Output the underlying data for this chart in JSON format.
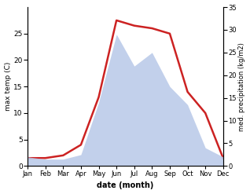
{
  "months": [
    "Jan",
    "Feb",
    "Mar",
    "Apr",
    "May",
    "Jun",
    "Jul",
    "Aug",
    "Sep",
    "Oct",
    "Nov",
    "Dec"
  ],
  "max_temp": [
    1.5,
    1.5,
    2.0,
    4.0,
    13.0,
    27.5,
    26.5,
    26.0,
    25.0,
    14.0,
    10.0,
    1.5
  ],
  "precipitation": [
    2.0,
    1.5,
    1.5,
    2.5,
    14.0,
    29.0,
    22.0,
    25.0,
    17.5,
    13.5,
    4.0,
    2.0
  ],
  "temp_color": "#cc2222",
  "precip_fill_color": "#b8c8e8",
  "precip_fill_alpha": 0.85,
  "temp_ylim": [
    0,
    30
  ],
  "precip_ylim": [
    0,
    35
  ],
  "ylabel_left": "max temp (C)",
  "ylabel_right": "med. precipitation (kg/m2)",
  "xlabel": "date (month)",
  "temp_yticks": [
    0,
    5,
    10,
    15,
    20,
    25
  ],
  "precip_yticks": [
    0,
    5,
    10,
    15,
    20,
    25,
    30,
    35
  ],
  "fig_width": 3.18,
  "fig_height": 2.47,
  "dpi": 100
}
